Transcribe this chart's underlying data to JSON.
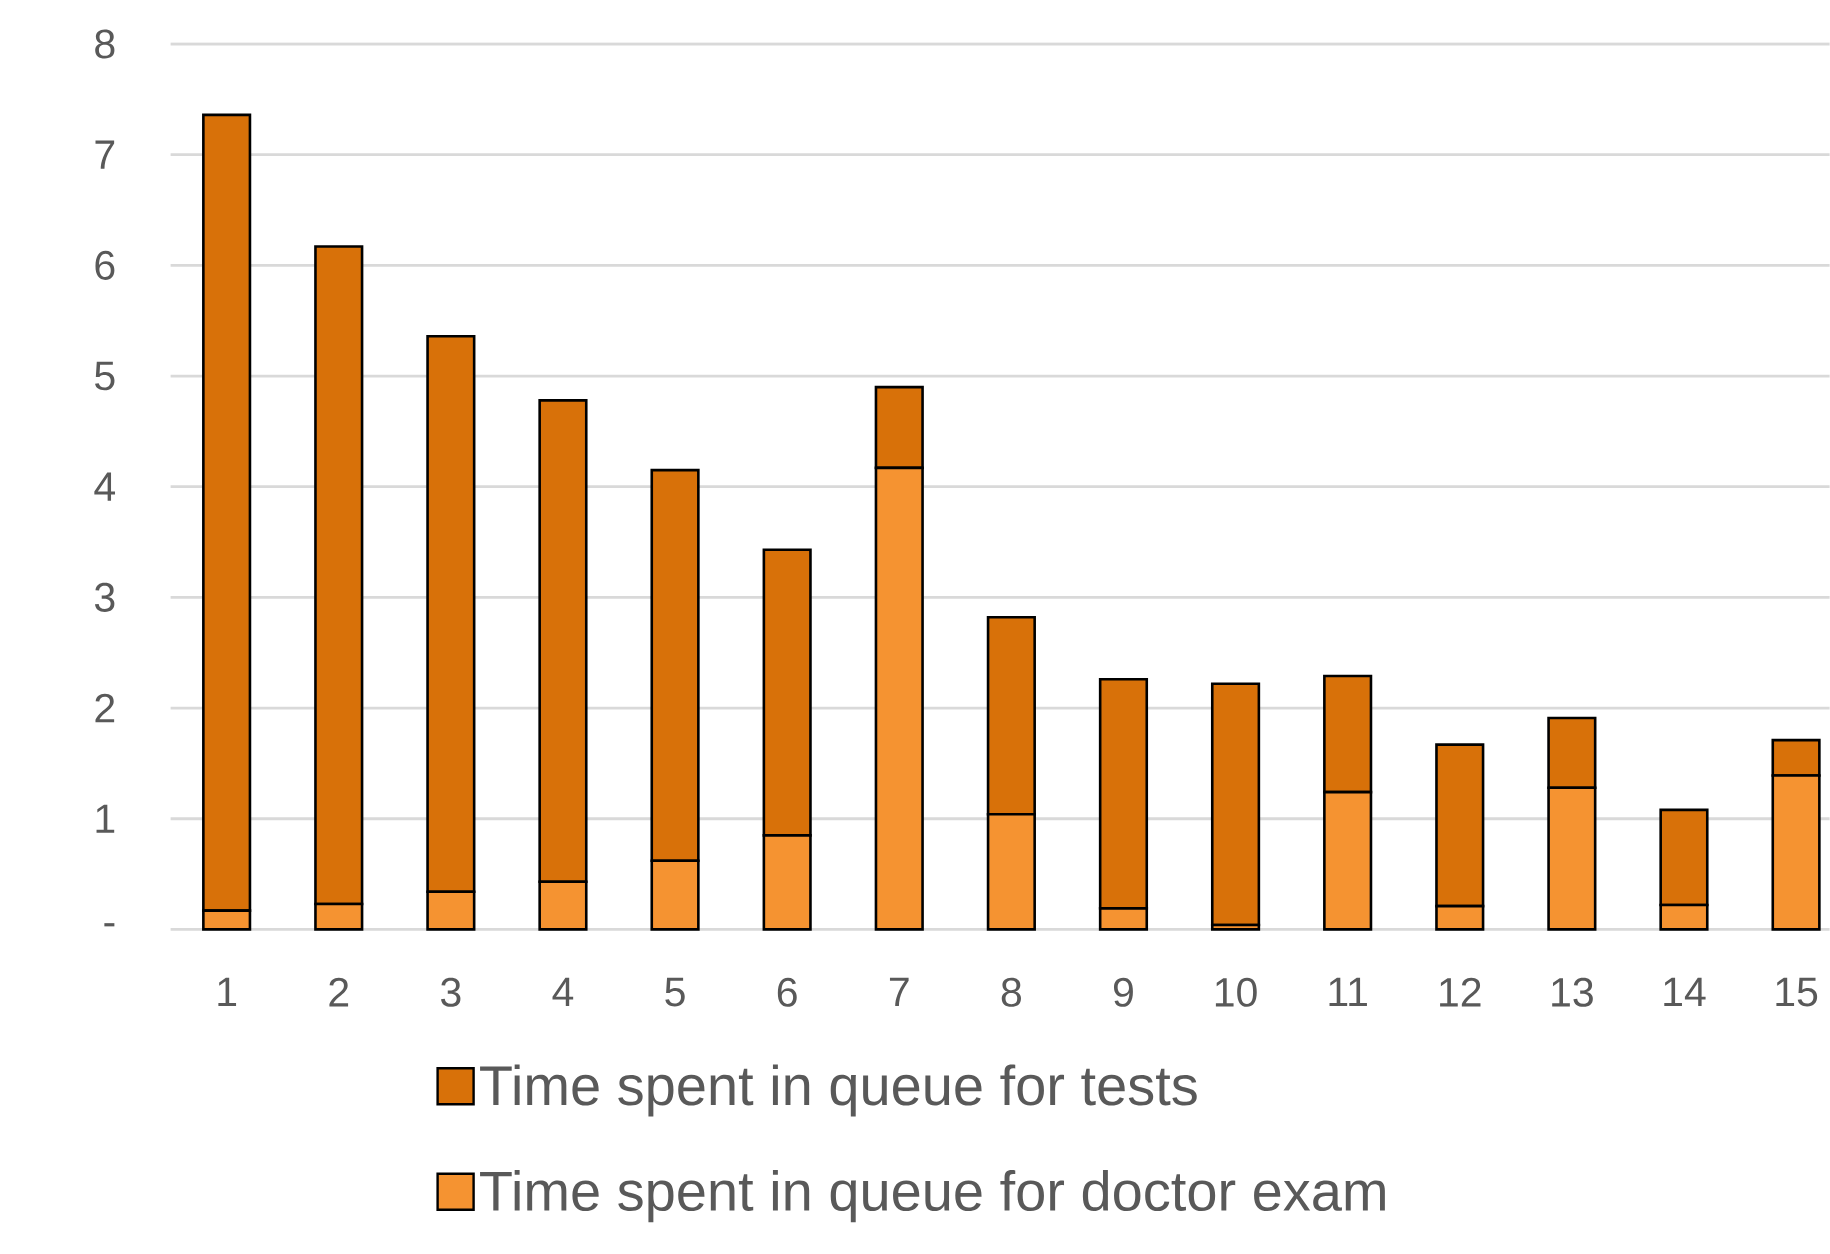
{
  "chart_data": {
    "type": "bar",
    "stacked": true,
    "categories": [
      "1",
      "2",
      "3",
      "4",
      "5",
      "6",
      "7",
      "8",
      "9",
      "10",
      "11",
      "12",
      "13",
      "14",
      "15"
    ],
    "series": [
      {
        "name": "Time spent in queue for doctor exam",
        "color": "#f59331",
        "values": [
          0.17,
          0.23,
          0.34,
          0.43,
          0.62,
          0.85,
          4.17,
          1.04,
          0.19,
          0.04,
          1.24,
          0.21,
          1.28,
          0.22,
          1.39
        ]
      },
      {
        "name": "Time spent in queue for tests",
        "color": "#d87109",
        "values": [
          7.19,
          5.94,
          5.02,
          4.35,
          3.53,
          2.58,
          0.73,
          1.78,
          2.07,
          2.18,
          1.05,
          1.46,
          0.63,
          0.86,
          0.32
        ]
      }
    ],
    "ylim": [
      0,
      8
    ],
    "yticks": [
      {
        "value": 0,
        "label": "-"
      },
      1,
      2,
      3,
      4,
      5,
      6,
      7,
      8
    ],
    "grid": "y",
    "legend": "bottom"
  }
}
